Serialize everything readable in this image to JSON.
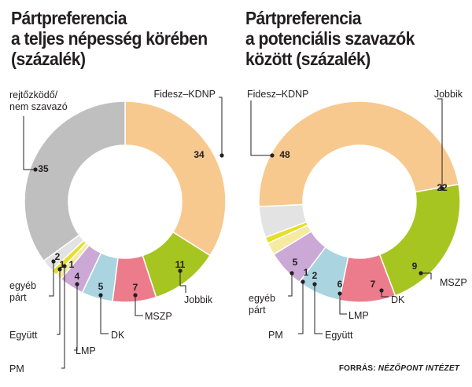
{
  "chart_data": [
    {
      "type": "pie",
      "donut": true,
      "title_lines": [
        "Pártpreferencia",
        "a teljes népesség körében",
        "(százalék)"
      ],
      "slices": [
        {
          "label": "Fidesz–KDNP",
          "value": 34,
          "value_label": "34",
          "color": "#f7c98f"
        },
        {
          "label": "Jobbik",
          "value": 11,
          "value_label": "11",
          "color": "#a7c520"
        },
        {
          "label": "MSZP",
          "value": 7,
          "value_label": "7",
          "color": "#ec7b8b"
        },
        {
          "label": "DK",
          "value": 5,
          "value_label": "5",
          "color": "#a9d4e0"
        },
        {
          "label": "LMP",
          "value": 4,
          "value_label": "4",
          "color": "#cba8d6"
        },
        {
          "label": "PM",
          "value": 1,
          "value_label": "1",
          "color": "#f5eaa0"
        },
        {
          "label": "Együtt",
          "value": 1,
          "value_label": "1",
          "color": "#e5de2e"
        },
        {
          "label": "egyéb párt",
          "value": 2,
          "value_label": "2",
          "color": "#e3e3e3"
        },
        {
          "label": "rejtőzködő/ nem szavazó",
          "value": 35,
          "value_label": "35",
          "color": "#c0bfbf"
        }
      ]
    },
    {
      "type": "pie",
      "donut": true,
      "title_lines": [
        "Pártpreferencia",
        "a potenciális szavazók",
        "között (százalék)"
      ],
      "slices": [
        {
          "label": "Jobbik",
          "value": 22,
          "value_label": "22",
          "color": "#a7c520"
        },
        {
          "label": "MSZP",
          "value": 9,
          "value_label": "9",
          "color": "#ec7b8b"
        },
        {
          "label": "DK",
          "value": 7,
          "value_label": "7",
          "color": "#a9d4e0"
        },
        {
          "label": "LMP",
          "value": 6,
          "value_label": "6",
          "color": "#cba8d6"
        },
        {
          "label": "Együtt",
          "value": 2,
          "value_label": "2",
          "color": "#f5eaa0"
        },
        {
          "label": "PM",
          "value": 1,
          "value_label": "1",
          "color": "#e5de2e"
        },
        {
          "label": "egyéb párt",
          "value": 5,
          "value_label": "5",
          "color": "#e3e3e3"
        },
        {
          "label": "Fidesz–KDNP",
          "value": 48,
          "value_label": "48",
          "color": "#f7c98f"
        }
      ]
    }
  ],
  "source": {
    "prefix": "FORRÁS: ",
    "name": "NÉZŐPONT INTÉZET"
  }
}
